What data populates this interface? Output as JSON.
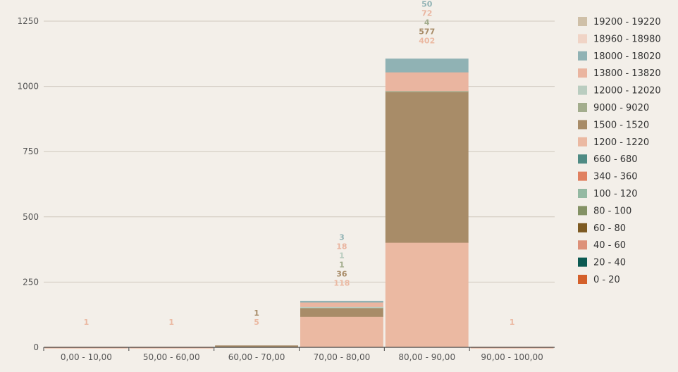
{
  "colors": {
    "background": "#f3efe9",
    "grid": "#d0c8be",
    "axis": "#444444"
  },
  "chart_data": {
    "type": "bar",
    "stacked": true,
    "categories": [
      "0,00 - 10,00",
      "50,00 - 60,00",
      "60,00 - 70,00",
      "70,00 - 80,00",
      "80,00 - 90,00",
      "90,00 - 100,00"
    ],
    "ylim": [
      0,
      1250
    ],
    "yticks": [
      0,
      250,
      500,
      750,
      1000,
      1250
    ],
    "grid": true,
    "legend_position": "right",
    "series": [
      {
        "name": "0 - 20",
        "color": "#d4602b",
        "values": [
          0,
          0,
          0,
          0,
          0,
          0
        ]
      },
      {
        "name": "20 - 40",
        "color": "#0c5a52",
        "values": [
          0,
          0,
          0,
          0,
          0,
          0
        ]
      },
      {
        "name": "40 - 60",
        "color": "#dd9179",
        "values": [
          0,
          0,
          0,
          0,
          0,
          0
        ]
      },
      {
        "name": "60 - 80",
        "color": "#7d5a22",
        "values": [
          0,
          0,
          0,
          0,
          0,
          0
        ]
      },
      {
        "name": "80 - 100",
        "color": "#849265",
        "values": [
          0,
          0,
          0,
          0,
          0,
          0
        ]
      },
      {
        "name": "100 - 120",
        "color": "#94b9a2",
        "values": [
          0,
          0,
          0,
          0,
          0,
          0
        ]
      },
      {
        "name": "340 - 360",
        "color": "#e08060",
        "values": [
          0,
          0,
          0,
          0,
          0,
          0
        ]
      },
      {
        "name": "660 - 680",
        "color": "#4f8b84",
        "values": [
          0,
          0,
          0,
          0,
          0,
          0
        ]
      },
      {
        "name": "1200 - 1220",
        "color": "#ebb9a2",
        "values": [
          1,
          1,
          5,
          118,
          402,
          1
        ]
      },
      {
        "name": "1500 - 1520",
        "color": "#a88c68",
        "values": [
          0,
          0,
          1,
          36,
          577,
          0
        ]
      },
      {
        "name": "9000 - 9020",
        "color": "#a3ad8d",
        "values": [
          0,
          0,
          0,
          1,
          4,
          0
        ]
      },
      {
        "name": "12000 - 12020",
        "color": "#bacdc0",
        "values": [
          0,
          0,
          0,
          1,
          0,
          0
        ]
      },
      {
        "name": "13800 - 13820",
        "color": "#eab5a0",
        "values": [
          0,
          0,
          0,
          18,
          72,
          0
        ]
      },
      {
        "name": "18000 - 18020",
        "color": "#90b2b4",
        "values": [
          0,
          0,
          0,
          3,
          50,
          0
        ]
      },
      {
        "name": "18960 - 18980",
        "color": "#f0d4c6",
        "values": [
          0,
          0,
          0,
          0,
          0,
          0
        ]
      },
      {
        "name": "19200 - 19220",
        "color": "#cfc0a8",
        "values": [
          0,
          0,
          0,
          0,
          0,
          0
        ]
      }
    ]
  }
}
